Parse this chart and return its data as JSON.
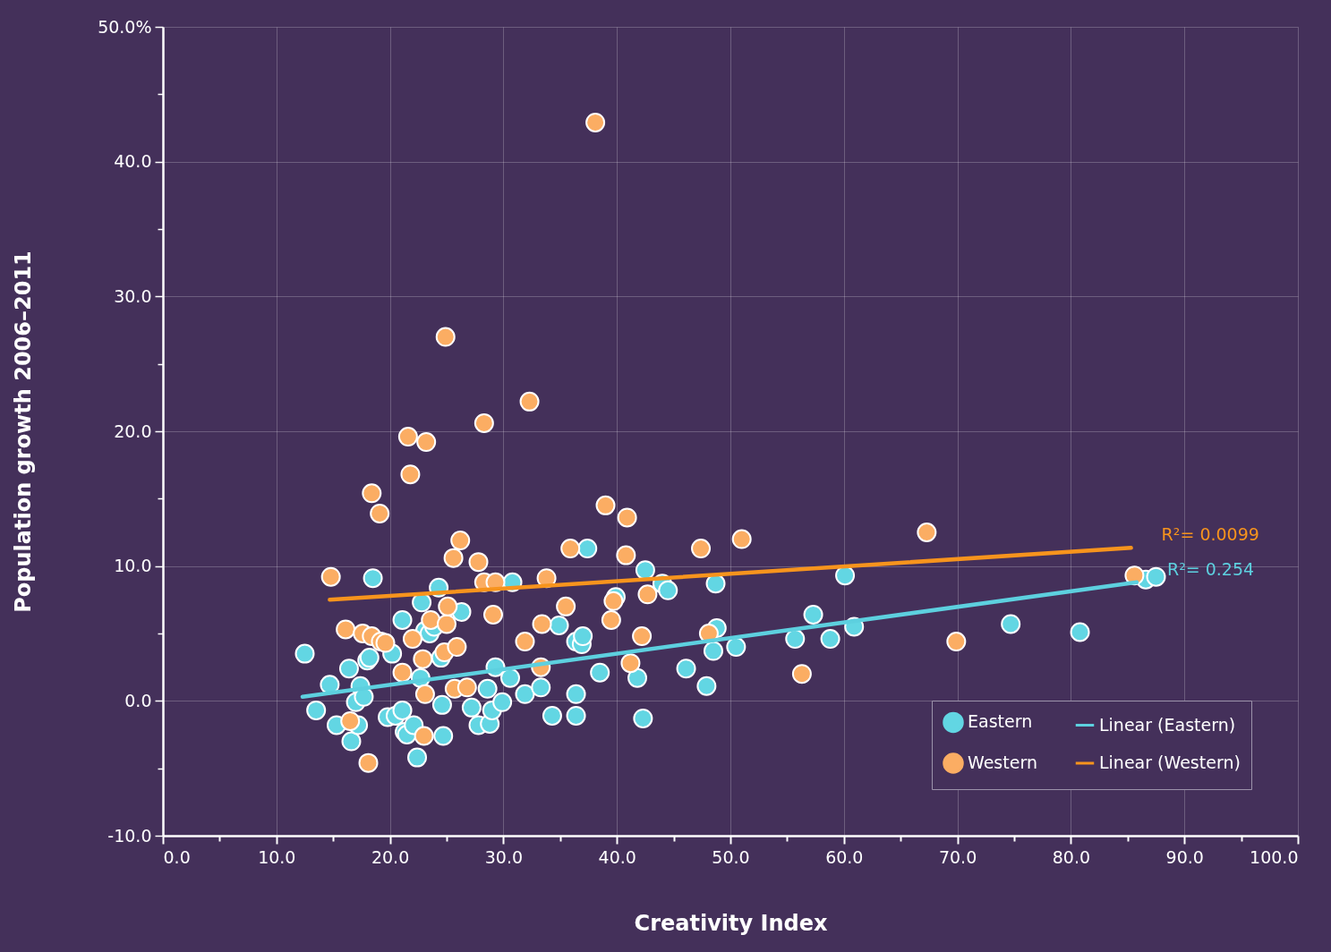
{
  "chart_data": {
    "type": "scatter",
    "xlabel": "Creativity Index",
    "ylabel": "Population growth 2006–2011",
    "xlim": [
      0,
      100
    ],
    "ylim": [
      -10,
      50
    ],
    "xticks": [
      {
        "value": 0,
        "label": "0.0"
      },
      {
        "value": 5,
        "label": null
      },
      {
        "value": 10,
        "label": "10.0"
      },
      {
        "value": 15,
        "label": null
      },
      {
        "value": 20,
        "label": "20.0"
      },
      {
        "value": 25,
        "label": null
      },
      {
        "value": 30,
        "label": "30.0"
      },
      {
        "value": 35,
        "label": null
      },
      {
        "value": 40,
        "label": "40.0"
      },
      {
        "value": 45,
        "label": null
      },
      {
        "value": 50,
        "label": "50.0"
      },
      {
        "value": 55,
        "label": null
      },
      {
        "value": 60,
        "label": "60.0"
      },
      {
        "value": 65,
        "label": null
      },
      {
        "value": 70,
        "label": "70.0"
      },
      {
        "value": 75,
        "label": null
      },
      {
        "value": 80,
        "label": "80.0"
      },
      {
        "value": 85,
        "label": null
      },
      {
        "value": 90,
        "label": "90.0"
      },
      {
        "value": 95,
        "label": null
      },
      {
        "value": 100,
        "label": "100.0"
      }
    ],
    "yticks": [
      {
        "value": -10,
        "label": "-10.0"
      },
      {
        "value": -5,
        "label": null
      },
      {
        "value": 0,
        "label": "0.0"
      },
      {
        "value": 5,
        "label": null
      },
      {
        "value": 10,
        "label": "10.0"
      },
      {
        "value": 15,
        "label": null
      },
      {
        "value": 20,
        "label": "20.0"
      },
      {
        "value": 25,
        "label": null
      },
      {
        "value": 30,
        "label": "30.0"
      },
      {
        "value": 35,
        "label": null
      },
      {
        "value": 40,
        "label": "40.0"
      },
      {
        "value": 45,
        "label": null
      },
      {
        "value": 50,
        "label": "50.0%"
      }
    ],
    "grid": true,
    "legend": "bottom right",
    "annotations": [
      {
        "text": "R²= 0.254",
        "x": 85.8,
        "y": 8.8
      },
      {
        "text": "R²= 0.0099",
        "x": 85.3,
        "y": 11.35
      }
    ],
    "series": [
      {
        "name": "Eastern",
        "marker": "circle",
        "color": "#62d6e3",
        "x": [
          12.5,
          13.5,
          14.7,
          15.3,
          16.4,
          16.6,
          17.0,
          17.4,
          17.2,
          17.7,
          18.0,
          18.2,
          18.5,
          19.8,
          20.2,
          20.5,
          21.1,
          21.1,
          21.3,
          21.5,
          22.1,
          22.4,
          22.7,
          22.8,
          23.1,
          23.5,
          23.9,
          24.3,
          24.5,
          24.6,
          24.7,
          26.3,
          27.2,
          27.8,
          28.6,
          28.8,
          29.0,
          29.3,
          29.9,
          30.6,
          30.8,
          31.9,
          33.3,
          34.3,
          34.9,
          36.4,
          36.4,
          36.4,
          36.9,
          37.0,
          37.4,
          38.5,
          39.9,
          41.8,
          42.3,
          42.5,
          44.0,
          44.5,
          46.1,
          47.9,
          48.5,
          48.7,
          48.8,
          50.5,
          55.7,
          57.3,
          58.8,
          60.1,
          60.9,
          74.7,
          80.8,
          86.6,
          87.5
        ],
        "values": [
          3.5,
          -0.7,
          1.2,
          -1.8,
          2.4,
          -3.0,
          -0.1,
          1.1,
          -1.8,
          0.3,
          3.0,
          3.2,
          9.1,
          -1.2,
          3.5,
          -1.1,
          6.0,
          -0.7,
          -2.3,
          -2.5,
          -1.8,
          -4.2,
          1.7,
          7.3,
          5.2,
          5.0,
          5.5,
          8.4,
          3.2,
          -0.3,
          -2.6,
          6.6,
          -0.5,
          -1.8,
          0.9,
          -1.7,
          -0.7,
          2.5,
          -0.1,
          1.7,
          8.8,
          0.5,
          1.0,
          -1.1,
          5.6,
          4.4,
          -1.1,
          0.5,
          4.2,
          4.8,
          11.3,
          2.1,
          7.7,
          1.7,
          -1.3,
          9.7,
          8.7,
          8.2,
          2.4,
          1.1,
          3.7,
          8.7,
          5.4,
          4.0,
          4.6,
          6.4,
          4.6,
          9.3,
          5.5,
          5.7,
          5.1,
          9.0,
          9.2
        ]
      },
      {
        "name": "Linear (Eastern)",
        "type": "line",
        "marker": "none",
        "color": "#5dd0df",
        "x": [
          12.3,
          85.8
        ],
        "values": [
          0.3,
          8.8
        ]
      },
      {
        "name": "Western",
        "marker": "circle",
        "color": "#fbad63",
        "x": [
          14.8,
          16.1,
          16.5,
          17.6,
          18.1,
          18.4,
          18.4,
          19.1,
          19.2,
          19.6,
          21.1,
          21.6,
          21.8,
          22.0,
          22.9,
          23.0,
          23.2,
          23.1,
          23.6,
          24.8,
          24.9,
          25.0,
          25.1,
          25.6,
          25.7,
          25.9,
          26.2,
          26.8,
          27.8,
          28.3,
          28.3,
          29.1,
          29.3,
          31.9,
          32.3,
          33.3,
          33.4,
          33.8,
          35.5,
          35.9,
          38.1,
          39.0,
          39.5,
          39.7,
          40.8,
          40.9,
          41.2,
          42.2,
          42.7,
          47.4,
          48.1,
          51.0,
          56.3,
          67.3,
          69.9,
          85.6
        ],
        "values": [
          9.2,
          5.3,
          -1.5,
          5.0,
          -4.6,
          15.4,
          4.8,
          13.9,
          4.4,
          4.3,
          2.1,
          19.6,
          16.8,
          4.6,
          3.1,
          -2.6,
          19.2,
          0.5,
          6.0,
          3.6,
          27.0,
          5.7,
          7.0,
          10.6,
          0.9,
          4.0,
          11.9,
          1.0,
          10.3,
          20.6,
          8.8,
          6.4,
          8.8,
          4.4,
          22.2,
          2.5,
          5.7,
          9.1,
          7.0,
          11.3,
          42.9,
          14.5,
          6.0,
          7.4,
          10.8,
          13.6,
          2.8,
          4.8,
          7.9,
          11.3,
          5.0,
          12.0,
          2.0,
          12.5,
          4.4,
          9.3
        ]
      },
      {
        "name": "Linear (Western)",
        "type": "line",
        "marker": "none",
        "color": "#f7941d",
        "x": [
          14.7,
          85.3
        ],
        "values": [
          7.5,
          11.35
        ]
      }
    ]
  }
}
